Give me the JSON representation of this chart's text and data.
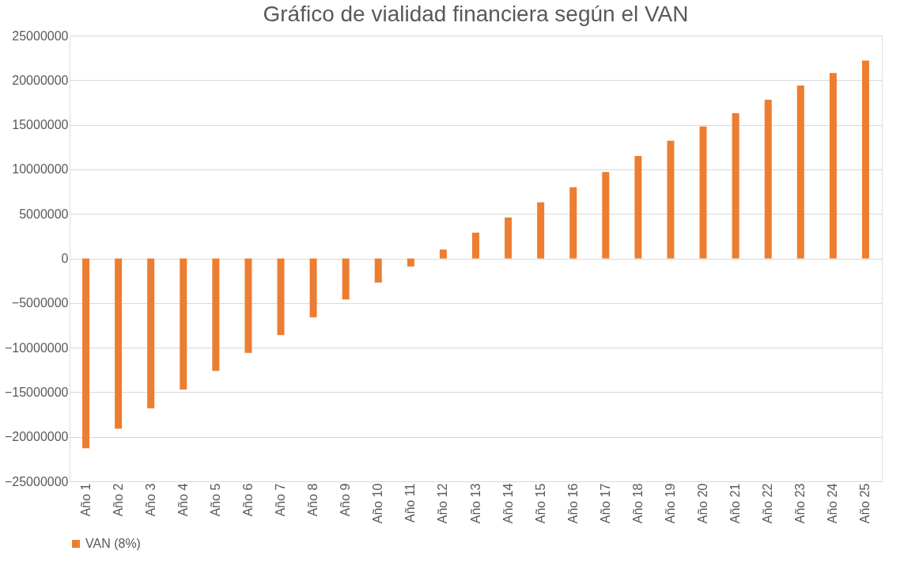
{
  "chart_data": {
    "type": "bar",
    "title": "Gráfico de vialidad financiera según el VAN",
    "categories": [
      "Año 1",
      "Año 2",
      "Año 3",
      "Año 4",
      "Año 5",
      "Año 6",
      "Año 7",
      "Año 8",
      "Año 9",
      "Año 10",
      "Año 11",
      "Año 12",
      "Año 13",
      "Año 14",
      "Año 15",
      "Año 16",
      "Año 17",
      "Año 18",
      "Año 19",
      "Año 20",
      "Año 21",
      "Año 22",
      "Año 23",
      "Año 24",
      "Año 25"
    ],
    "series": [
      {
        "name": "VAN (8%)",
        "color": "#ed7d31",
        "values": [
          -21300000,
          -19100000,
          -16800000,
          -14700000,
          -12600000,
          -10600000,
          -8600000,
          -6600000,
          -4600000,
          -2700000,
          -900000,
          1000000,
          2900000,
          4600000,
          6300000,
          8000000,
          9700000,
          11500000,
          13200000,
          14800000,
          16300000,
          17800000,
          19400000,
          20800000,
          22200000
        ]
      }
    ],
    "ylim": [
      -25000000,
      25000000
    ],
    "yticks": [
      -25000000,
      -20000000,
      -15000000,
      -10000000,
      -5000000,
      0,
      5000000,
      10000000,
      15000000,
      20000000,
      25000000
    ],
    "grid": "y",
    "legend": "bottom"
  }
}
